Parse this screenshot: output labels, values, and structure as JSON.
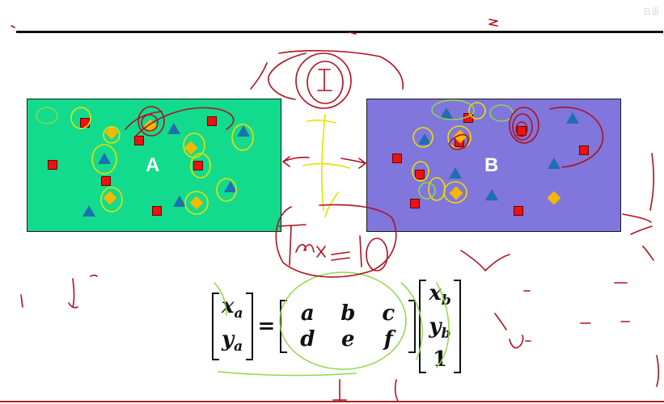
{
  "corner_text": "日语",
  "panels": {
    "a": {
      "label": "A",
      "bg": "#12db8e"
    },
    "b": {
      "label": "B",
      "bg": "#8076dc"
    }
  },
  "equation": {
    "lhs": [
      [
        "x",
        "a"
      ],
      [
        "y",
        "a"
      ]
    ],
    "equals": "=",
    "transform": [
      [
        "a",
        "b",
        "c"
      ],
      [
        "d",
        "e",
        "f"
      ]
    ],
    "rhs": [
      [
        "x",
        "b"
      ],
      [
        "y",
        "b"
      ],
      [
        "1",
        ""
      ]
    ]
  },
  "colors": {
    "square": "#ee1111",
    "triangle": "#1f6fb2",
    "diamond": "#f5b800",
    "ink_red": "#b01020",
    "ink_yellow": "#e8e000",
    "ink_green": "#8fd84a"
  }
}
